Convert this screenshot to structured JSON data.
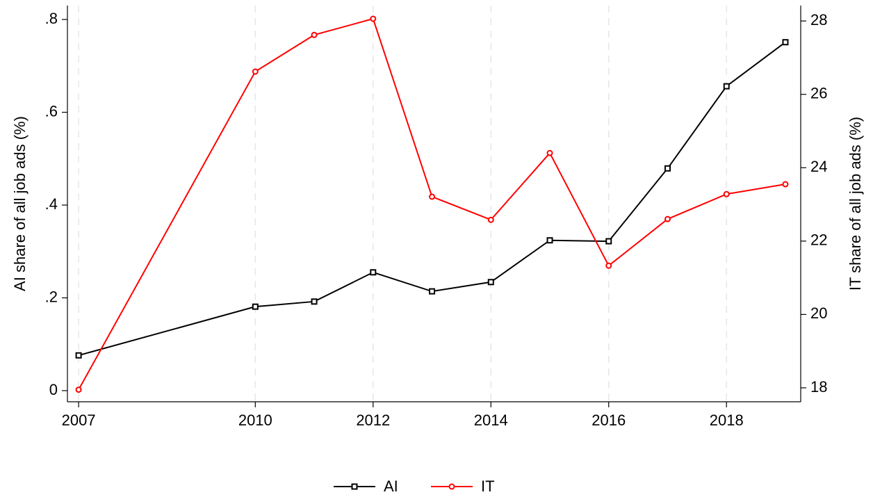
{
  "chart_data": {
    "type": "line",
    "x": [
      2007,
      2010,
      2011,
      2012,
      2013,
      2014,
      2015,
      2016,
      2017,
      2018,
      2019
    ],
    "series": [
      {
        "name": "AI",
        "color": "#000000",
        "marker": "square",
        "values": [
          0.076,
          0.181,
          0.192,
          0.255,
          0.214,
          0.234,
          0.324,
          0.322,
          0.479,
          0.656,
          0.751
        ]
      },
      {
        "name": "IT",
        "color": "#ff0000",
        "marker": "circle",
        "axis": "y2",
        "values": [
          17.95,
          26.62,
          27.62,
          28.06,
          23.21,
          22.58,
          24.4,
          21.33,
          22.6,
          23.28,
          23.55
        ]
      }
    ],
    "ylabel": "AI share of all job ads (%)",
    "y2label": "IT share of all job ads (%)",
    "xlim": [
      2006.81,
      2019.26
    ],
    "xticks": [
      2007,
      2010,
      2012,
      2014,
      2016,
      2018
    ],
    "ylim": [
      -0.024,
      0.83
    ],
    "yticks": [
      0,
      {
        "value": 0.2,
        "label": ".2"
      },
      {
        "value": 0.4,
        "label": ".4"
      },
      {
        "value": 0.6,
        "label": ".6"
      },
      {
        "value": 0.8,
        "label": ".8"
      }
    ],
    "y2lim": [
      17.62,
      28.42
    ],
    "y2ticks": [
      18,
      20,
      22,
      24,
      26,
      28
    ],
    "grid": "x",
    "legend": "bottom"
  }
}
